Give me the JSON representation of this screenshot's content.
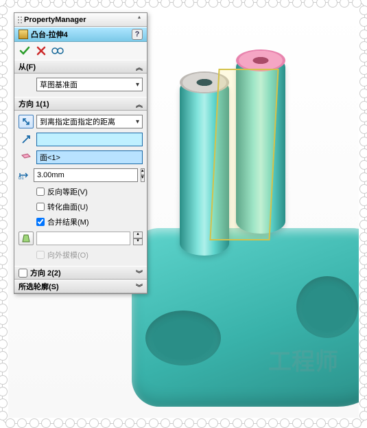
{
  "panel": {
    "title": "PropertyManager",
    "feature_name": "凸台-拉伸4",
    "help_tooltip": "?"
  },
  "actions": {
    "ok": "✓",
    "cancel": "✕",
    "preview": "👓"
  },
  "from": {
    "header": "从(F)",
    "option": "草图基准面"
  },
  "dir1": {
    "header": "方向 1(1)",
    "end_condition": "到离指定面指定的距离",
    "face_value": "面<1>",
    "offset_label": "D1",
    "offset_value": "3.00mm",
    "chk_reverse_offset": "反向等距(V)",
    "chk_translate_surface": "转化曲面(U)",
    "chk_merge_result": "合并结果(M)",
    "chk_draft_outward": "向外拔模(O)"
  },
  "dir2": {
    "header": "方向 2(2)"
  },
  "contours": {
    "header": "所选轮廓(S)"
  },
  "colors": {
    "panel_bg": "#f0f0f0",
    "header_blue_top": "#aee6ff",
    "header_blue_bot": "#7bc9e8",
    "teal_main": "#5ed4cc",
    "teal_dark": "#2a8e87",
    "pink_top": "#f5a6c4",
    "yellow_edge": "#d4c24a",
    "sel_cyan": "#bff0ff"
  },
  "watermark": "工程师"
}
